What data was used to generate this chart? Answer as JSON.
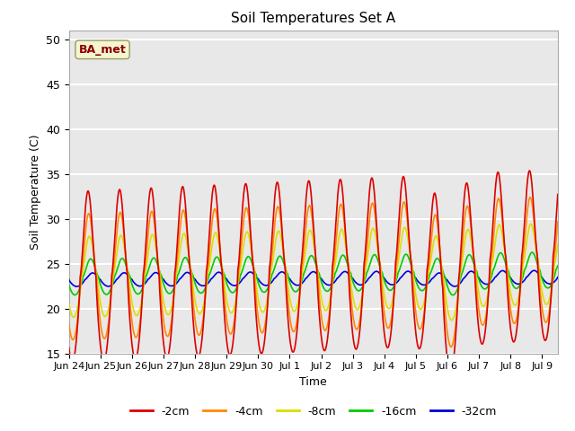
{
  "title": "Soil Temperatures Set A",
  "xlabel": "Time",
  "ylabel": "Soil Temperature (C)",
  "ylim": [
    15,
    51
  ],
  "yticks": [
    15,
    20,
    25,
    30,
    35,
    40,
    45,
    50
  ],
  "plot_bg_color": "#e8e8e8",
  "grid_color": "#ffffff",
  "annotation_text": "BA_met",
  "annotation_color": "#8B0000",
  "annotation_bg": "#f5f5d0",
  "series_colors": {
    "-2cm": "#dd0000",
    "-4cm": "#ff8800",
    "-8cm": "#dddd00",
    "-16cm": "#00cc00",
    "-32cm": "#0000dd"
  },
  "xtick_labels": [
    "Jun 24",
    "Jun 25",
    "Jun 26",
    "Jun 27",
    "Jun 28",
    "Jun 29",
    "Jun 30",
    "Jul 1",
    "Jul 2",
    "Jul 3",
    "Jul 4",
    "Jul 5",
    "Jul 6",
    "Jul 7",
    "Jul 8",
    "Jul 9"
  ],
  "n_days": 15.5,
  "points_per_day": 144,
  "depth_params": {
    "-2cm": {
      "mean": 23.5,
      "amp": 9.5,
      "phase_hr": 14.5,
      "trend": 2.5,
      "idx": 0
    },
    "-4cm": {
      "mean": 23.5,
      "amp": 7.0,
      "phase_hr": 15.0,
      "trend": 2.0,
      "idx": 1
    },
    "-8cm": {
      "mean": 23.5,
      "amp": 4.5,
      "phase_hr": 15.5,
      "trend": 1.5,
      "idx": 2
    },
    "-16cm": {
      "mean": 23.5,
      "amp": 2.0,
      "phase_hr": 16.5,
      "trend": 0.8,
      "idx": 3
    },
    "-32cm": {
      "mean": 23.2,
      "amp": 0.75,
      "phase_hr": 18.0,
      "trend": 0.3,
      "idx": 4
    }
  },
  "series_order": [
    "-32cm",
    "-16cm",
    "-8cm",
    "-4cm",
    "-2cm"
  ]
}
